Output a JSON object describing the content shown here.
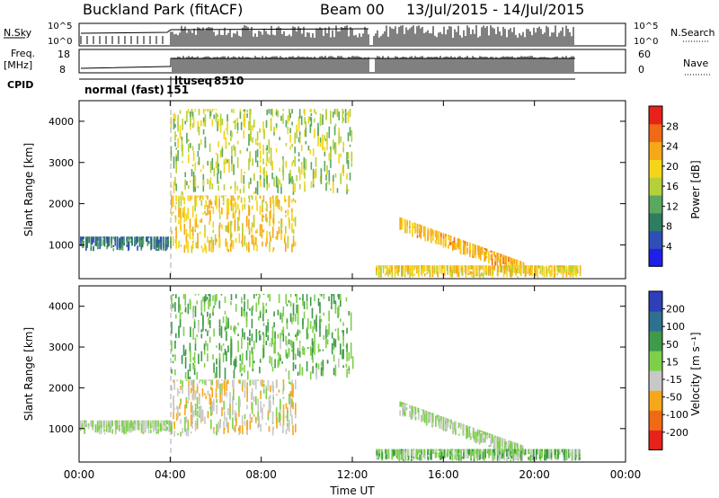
{
  "header": {
    "station": "Buckland Park (fitACF)",
    "beam": "Beam 00",
    "date_range": "13/Jul/2015 - 14/Jul/2015"
  },
  "top_panels": {
    "nsky_label": "N.Sky",
    "nsky_ticks": [
      "10^5",
      "10^0"
    ],
    "nsearch_label": "N.Search",
    "nsearch_ticks": [
      "10^5",
      "10^0"
    ],
    "freq_label_1": "Freq.",
    "freq_label_2": "[MHz]",
    "freq_ticks": [
      "18",
      "8"
    ],
    "nave_label": "Nave",
    "nave_ticks": [
      "60",
      "0"
    ],
    "cpid_label": "CPID",
    "cpid_segments": [
      "normal (fast)",
      "151",
      "ltuseq",
      "8510"
    ]
  },
  "chart_data": [
    {
      "type": "heatmap",
      "title": "",
      "parameter": "Power",
      "colorbar_label": "Power [dB]",
      "colorbar_ticks": [
        "28",
        "24",
        "20",
        "16",
        "12",
        "8",
        "4"
      ],
      "colorbar_range": [
        0,
        32
      ],
      "ylabel": "Slant Range [km]",
      "ylim": [
        180,
        4500
      ],
      "yticks": [
        "4000",
        "3000",
        "2000",
        "1000"
      ],
      "xlim_hours": [
        0,
        24
      ],
      "xticks": [
        "00:00",
        "04:00",
        "08:00",
        "12:00",
        "16:00",
        "20:00",
        "00:00"
      ],
      "xlabel": "",
      "data_gap_hours": [
        12.9,
        13.0
      ],
      "data_end_hour": 22.0,
      "scatter_regions": [
        {
          "name": "band-1000km",
          "t": [
            0.0,
            4.0
          ],
          "range_km": [
            850,
            1200
          ],
          "value": 8
        },
        {
          "name": "main-echo",
          "t": [
            4.0,
            9.5
          ],
          "range_km": [
            800,
            2200
          ],
          "value": 20
        },
        {
          "name": "high-range",
          "t": [
            4.0,
            12.0
          ],
          "range_km": [
            2200,
            4300
          ],
          "value": 16
        },
        {
          "name": "descending-echo",
          "t": [
            14.0,
            19.5
          ],
          "range_km": [
            400,
            1600
          ],
          "value": 22
        },
        {
          "name": "near-range",
          "t": [
            13.0,
            22.0
          ],
          "range_km": [
            200,
            500
          ],
          "value": 20
        }
      ],
      "colormap": [
        "#1f1fe8",
        "#2e4fb8",
        "#2f7d5f",
        "#5aa860",
        "#b5d13a",
        "#f5d51a",
        "#f7a71a",
        "#f06a16",
        "#e8221b"
      ]
    },
    {
      "type": "heatmap",
      "title": "",
      "parameter": "Velocity",
      "colorbar_label": "Velocity [m s⁻¹]",
      "colorbar_ticks": [
        "200",
        "100",
        "50",
        "15",
        "-15",
        "-50",
        "-100",
        "-200"
      ],
      "colorbar_range": [
        -250,
        250
      ],
      "ylabel": "Slant Range [km]",
      "ylim": [
        180,
        4500
      ],
      "yticks": [
        "4000",
        "3000",
        "2000",
        "1000"
      ],
      "xlim_hours": [
        0,
        24
      ],
      "xticks": [
        "00:00",
        "04:00",
        "08:00",
        "12:00",
        "16:00",
        "20:00",
        "00:00"
      ],
      "xlabel": "Time UT",
      "data_gap_hours": [
        12.9,
        13.0
      ],
      "data_end_hour": 22.0,
      "scatter_regions": [
        {
          "name": "band-1000km",
          "t": [
            0.0,
            4.0
          ],
          "range_km": [
            850,
            1200
          ],
          "value": 0
        },
        {
          "name": "main-echo",
          "t": [
            4.0,
            9.5
          ],
          "range_km": [
            800,
            2200
          ],
          "value": -30
        },
        {
          "name": "high-range",
          "t": [
            4.0,
            12.0
          ],
          "range_km": [
            2200,
            4300
          ],
          "value": 60
        },
        {
          "name": "descending-echo",
          "t": [
            14.0,
            19.5
          ],
          "range_km": [
            400,
            1600
          ],
          "value": 0
        },
        {
          "name": "near-range",
          "t": [
            13.0,
            22.0
          ],
          "range_km": [
            200,
            500
          ],
          "value": 40
        }
      ],
      "colormap": [
        "#e8221b",
        "#f06a16",
        "#f7a71a",
        "#c8c8c8",
        "#7ed04a",
        "#3f9a4a",
        "#2f6f8f",
        "#2e3fb8"
      ]
    }
  ]
}
